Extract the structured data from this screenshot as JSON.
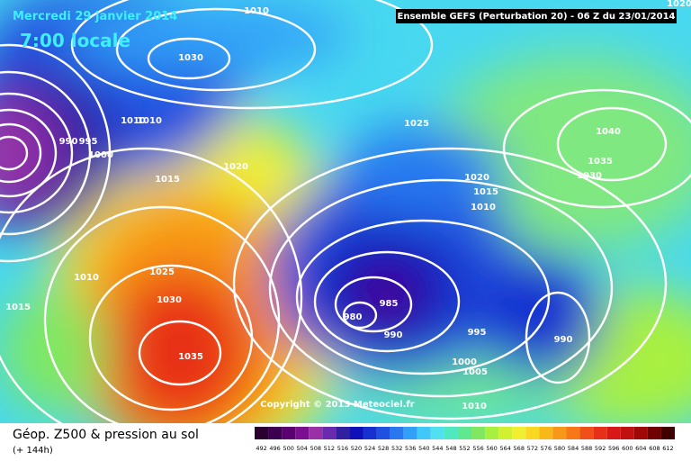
{
  "header": {
    "date": "Mercredi 29 janvier 2014",
    "time": "7:00 locale",
    "model": "Ensemble GEFS (Perturbation 20)  -  06 Z du 23/01/2014"
  },
  "footer": {
    "title": "Géop. Z500 & pression au sol",
    "lead": "(+ 144h)",
    "copyright": "Copyright © 2013 Meteociel.fr"
  },
  "colorbar": {
    "values": [
      492,
      496,
      500,
      504,
      508,
      512,
      516,
      520,
      524,
      528,
      532,
      536,
      540,
      544,
      548,
      552,
      556,
      560,
      564,
      568,
      572,
      576,
      580,
      584,
      588,
      592,
      596,
      600,
      604,
      608,
      612
    ],
    "colors": [
      "#2a0030",
      "#3c0050",
      "#5a0070",
      "#7a1090",
      "#9a30a8",
      "#6a2ab0",
      "#3020a0",
      "#1010b8",
      "#1830d0",
      "#2050e0",
      "#2878f0",
      "#30a0f8",
      "#40c8f8",
      "#50e0f0",
      "#50e8c0",
      "#60e890",
      "#80e860",
      "#a8f040",
      "#d0f030",
      "#f0f030",
      "#f8d820",
      "#f8b818",
      "#f89818",
      "#f87818",
      "#f05018",
      "#e83018",
      "#d81818",
      "#c01010",
      "#a00808",
      "#700000",
      "#400000"
    ]
  },
  "isobar_labels": [
    1010,
    1030,
    1010,
    1010,
    990,
    995,
    1000,
    1015,
    1020,
    1025,
    1040,
    1035,
    1030,
    1020,
    1015,
    1010,
    1010,
    1015,
    1025,
    1030,
    1035,
    980,
    985,
    990,
    995,
    1000,
    1005,
    1010,
    990,
    1020
  ]
}
